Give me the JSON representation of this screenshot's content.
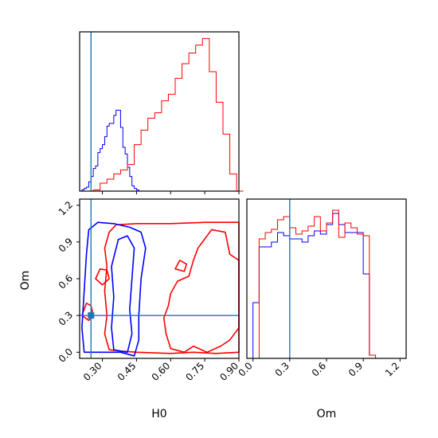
{
  "chart_data": {
    "type": "corner",
    "colors": {
      "series_a": "#0000ff",
      "series_b": "#ff0000",
      "truth": "#1f77b4"
    },
    "truth": {
      "H0": 0.25,
      "Om": 0.3
    },
    "panels": [
      {
        "id": "hist-H0",
        "type": "histogram",
        "xlim": [
          0.2,
          0.9
        ],
        "xticks": [
          0.3,
          0.45,
          0.6,
          0.75,
          0.9
        ],
        "series": [
          {
            "color_key": "series_a",
            "bin_edges": [
              0.2,
              0.21,
              0.22,
              0.23,
              0.24,
              0.25,
              0.26,
              0.27,
              0.28,
              0.29,
              0.3,
              0.31,
              0.32,
              0.33,
              0.34,
              0.35,
              0.36,
              0.37,
              0.38,
              0.39,
              0.4,
              0.41,
              0.42,
              0.43,
              0.44,
              0.45,
              0.46,
              0.47,
              0.48,
              0.49,
              0.5
            ],
            "counts": [
              0,
              1,
              2,
              3,
              7,
              11,
              17,
              19,
              29,
              32,
              35,
              41,
              49,
              51,
              51,
              57,
              61,
              61,
              48,
              33,
              28,
              18,
              11,
              4,
              2,
              1,
              0,
              0,
              0,
              0
            ]
          },
          {
            "color_key": "series_b",
            "bin_edges": [
              0.2,
              0.23,
              0.26,
              0.29,
              0.32,
              0.35,
              0.38,
              0.41,
              0.44,
              0.47,
              0.5,
              0.53,
              0.56,
              0.59,
              0.62,
              0.65,
              0.68,
              0.71,
              0.74,
              0.77,
              0.8,
              0.83,
              0.86,
              0.89,
              0.92
            ],
            "counts": [
              0,
              0,
              1,
              6,
              9,
              13,
              16,
              20,
              35,
              46,
              55,
              59,
              68,
              73,
              85,
              96,
              104,
              110,
              115,
              90,
              67,
              43,
              13,
              0
            ]
          }
        ],
        "ymax": 120
      },
      {
        "id": "contour-H0-Om",
        "type": "contour",
        "xlim": [
          0.2,
          0.9
        ],
        "ylim": [
          -0.05,
          1.25
        ],
        "xticks": [
          0.3,
          0.45,
          0.6,
          0.75,
          0.9
        ],
        "yticks": [
          0.0,
          0.3,
          0.6,
          0.9,
          1.2
        ],
        "xlabel": "H0",
        "ylabel": "Om"
      },
      {
        "id": "hist-Om",
        "type": "histogram",
        "xlim": [
          -0.05,
          1.25
        ],
        "xticks": [
          0.0,
          0.3,
          0.6,
          0.9,
          1.2
        ],
        "xlabel": "Om",
        "series": [
          {
            "color_key": "series_a",
            "bin_edges": [
              -0.05,
              0.0,
              0.05,
              0.1,
              0.15,
              0.2,
              0.25,
              0.3,
              0.35,
              0.4,
              0.45,
              0.5,
              0.55,
              0.6,
              0.65,
              0.7,
              0.75,
              0.8,
              0.85,
              0.9,
              0.95,
              1.0,
              1.05,
              1.1
            ],
            "counts": [
              0,
              35,
              70,
              70,
              73,
              79,
              77,
              75,
              75,
              73,
              77,
              80,
              78,
              84,
              91,
              84,
              79,
              79,
              79,
              53,
              2,
              0,
              0
            ]
          },
          {
            "color_key": "series_b",
            "bin_edges": [
              -0.05,
              0.0,
              0.05,
              0.1,
              0.15,
              0.2,
              0.25,
              0.3,
              0.35,
              0.4,
              0.45,
              0.5,
              0.55,
              0.6,
              0.65,
              0.7,
              0.75,
              0.8,
              0.85,
              0.9,
              0.95,
              1.0,
              1.05,
              1.1
            ],
            "counts": [
              0,
              0,
              75,
              79,
              81,
              87,
              89,
              82,
              78,
              80,
              83,
              89,
              80,
              85,
              93,
              76,
              85,
              82,
              78,
              77,
              2,
              0,
              0
            ]
          }
        ],
        "ymax": 100
      }
    ]
  }
}
